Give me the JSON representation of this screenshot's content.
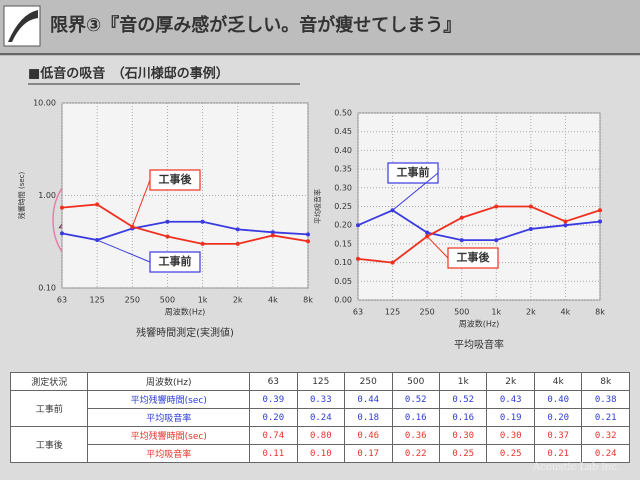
{
  "slide": {
    "title": "限界③『音の厚み感が乏しい。音が痩せてしまう』",
    "subtitle": "■低音の吸音　（石川様邸の事例）",
    "footer": "Acoustic Lab inc."
  },
  "chart_data": [
    {
      "type": "line",
      "caption": "残響時間測定(実測値)",
      "y_label": "残響時間 (sec)",
      "x_label": "周波数(Hz)",
      "log_y": true,
      "grid": true,
      "categories": [
        "63",
        "125",
        "250",
        "500",
        "1k",
        "2k",
        "4k",
        "8k"
      ],
      "ylim": [
        0.1,
        10
      ],
      "yticks": [
        {
          "value": 0.1,
          "label": "0.10"
        },
        {
          "value": 1,
          "label": "1.00"
        },
        {
          "value": 10,
          "label": "10.00"
        }
      ],
      "series": [
        {
          "name": "工事前",
          "color": "#3a3ae0",
          "values": [
            0.39,
            0.33,
            0.44,
            0.52,
            0.52,
            0.43,
            0.4,
            0.38
          ]
        },
        {
          "name": "工事後",
          "color": "#f0301e",
          "values": [
            0.74,
            0.8,
            0.46,
            0.36,
            0.3,
            0.3,
            0.37,
            0.32
          ]
        }
      ]
    },
    {
      "type": "line",
      "caption": "平均吸音率",
      "y_label": "平均吸音率",
      "x_label": "周波数(Hz)",
      "log_y": false,
      "grid": true,
      "categories": [
        "63",
        "125",
        "250",
        "500",
        "1k",
        "2k",
        "4k",
        "8k"
      ],
      "ylim": [
        0,
        0.5
      ],
      "yticks": [
        {
          "value": 0,
          "label": "0.00"
        },
        {
          "value": 0.05,
          "label": "0.05"
        },
        {
          "value": 0.1,
          "label": "0.10"
        },
        {
          "value": 0.15,
          "label": "0.15"
        },
        {
          "value": 0.2,
          "label": "0.20"
        },
        {
          "value": 0.25,
          "label": "0.25"
        },
        {
          "value": 0.3,
          "label": "0.30"
        },
        {
          "value": 0.35,
          "label": "0.35"
        },
        {
          "value": 0.4,
          "label": "0.40"
        },
        {
          "value": 0.45,
          "label": "0.45"
        },
        {
          "value": 0.5,
          "label": "0.50"
        }
      ],
      "series": [
        {
          "name": "工事前",
          "color": "#3a3ae0",
          "values": [
            0.2,
            0.24,
            0.18,
            0.16,
            0.16,
            0.19,
            0.2,
            0.21
          ]
        },
        {
          "name": "工事後",
          "color": "#f0301e",
          "values": [
            0.11,
            0.1,
            0.17,
            0.22,
            0.25,
            0.25,
            0.21,
            0.24
          ]
        }
      ]
    }
  ],
  "table": {
    "header": [
      "測定状況",
      "周波数(Hz)",
      "63",
      "125",
      "250",
      "500",
      "1k",
      "2k",
      "4k",
      "8k"
    ],
    "groups": [
      {
        "label": "工事前",
        "color": "#2a3bd6",
        "rows": [
          [
            "平均残響時間(sec)",
            "0.39",
            "0.33",
            "0.44",
            "0.52",
            "0.52",
            "0.43",
            "0.40",
            "0.38"
          ],
          [
            "平均吸音率",
            "0.20",
            "0.24",
            "0.18",
            "0.16",
            "0.16",
            "0.19",
            "0.20",
            "0.21"
          ]
        ]
      },
      {
        "label": "工事後",
        "color": "#e8322a",
        "rows": [
          [
            "平均残響時間(sec)",
            "0.74",
            "0.80",
            "0.46",
            "0.36",
            "0.30",
            "0.30",
            "0.37",
            "0.32"
          ],
          [
            "平均吸音率",
            "0.11",
            "0.10",
            "0.17",
            "0.22",
            "0.25",
            "0.25",
            "0.21",
            "0.24"
          ]
        ]
      }
    ]
  }
}
